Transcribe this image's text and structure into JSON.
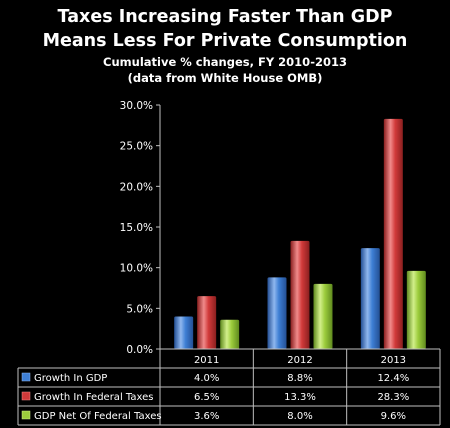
{
  "chart_data": {
    "type": "bar",
    "title": "Taxes Increasing Faster Than GDP",
    "title2": "Means Less For Private Consumption",
    "subtitle": "Cumulative % changes, FY 2010-2013",
    "subtitle2": "(data from White House OMB)",
    "categories": [
      "2011",
      "2012",
      "2013"
    ],
    "series": [
      {
        "name": "Growth In GDP",
        "values": [
          4.0,
          8.8,
          12.4
        ],
        "labels": [
          "4.0%",
          "8.8%",
          "12.4%"
        ]
      },
      {
        "name": "Growth In Federal Taxes",
        "values": [
          6.5,
          13.3,
          28.3
        ],
        "labels": [
          "6.5%",
          "13.3%",
          "28.3%"
        ]
      },
      {
        "name": "GDP Net Of Federal Taxes",
        "values": [
          3.6,
          8.0,
          9.6
        ],
        "labels": [
          "3.6%",
          "8.0%",
          "9.6%"
        ]
      }
    ],
    "yticks": [
      "0.0%",
      "5.0%",
      "10.0%",
      "15.0%",
      "20.0%",
      "25.0%",
      "30.0%"
    ],
    "ylim": [
      0,
      30
    ],
    "grid": false,
    "legend": "data table below chart"
  },
  "colors": {
    "series": [
      "#3e7fd4",
      "#d13a3a",
      "#9ccc3c"
    ],
    "series_light": [
      "#8fb7ee",
      "#f08a8a",
      "#d2ef8a"
    ],
    "series_dark": [
      "#234f94",
      "#8a1f1f",
      "#5f8a1e"
    ],
    "axis": "#bfbfbf"
  }
}
